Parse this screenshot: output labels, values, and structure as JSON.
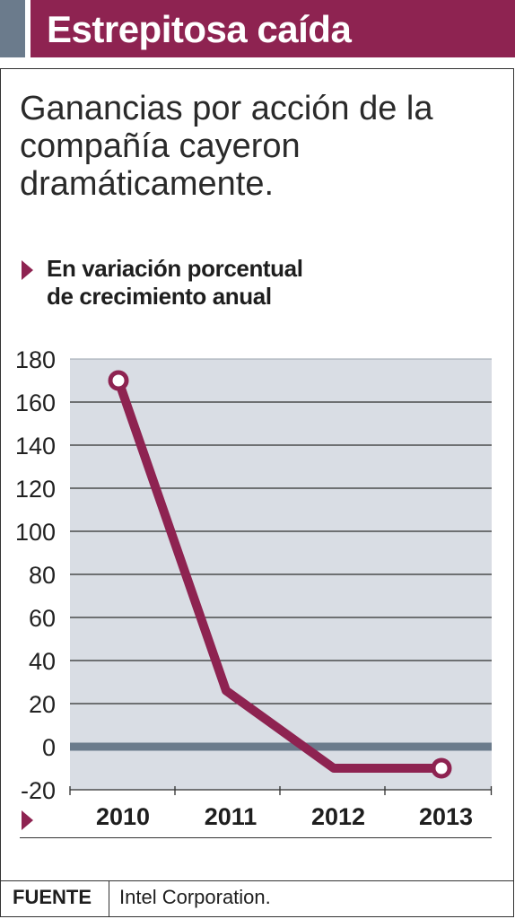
{
  "header": {
    "title": "Estrepitosa caída"
  },
  "subtitle": "Ganancias por acción de la compañía cayeron dramáticamente.",
  "unit_label_line1": "En variación porcentual",
  "unit_label_line2": "de crecimiento anual",
  "colors": {
    "accent": "#8e2351",
    "plot_background": "#d9dde4",
    "zero_line": "#6b7b8c",
    "header_side": "#6b7b8c"
  },
  "source": {
    "label": "FUENTE",
    "text": "Intel Corporation."
  },
  "chart_data": {
    "type": "line",
    "categories": [
      "2010",
      "2011",
      "2012",
      "2013"
    ],
    "series": [
      {
        "values": [
          170,
          26,
          -10,
          -10
        ]
      }
    ],
    "ylim": [
      -20,
      180
    ],
    "yticks": [
      "180",
      "160",
      "140",
      "120",
      "100",
      "80",
      "60",
      "40",
      "20",
      "0",
      "-20"
    ],
    "grid": true,
    "endpoint_markers": true
  }
}
